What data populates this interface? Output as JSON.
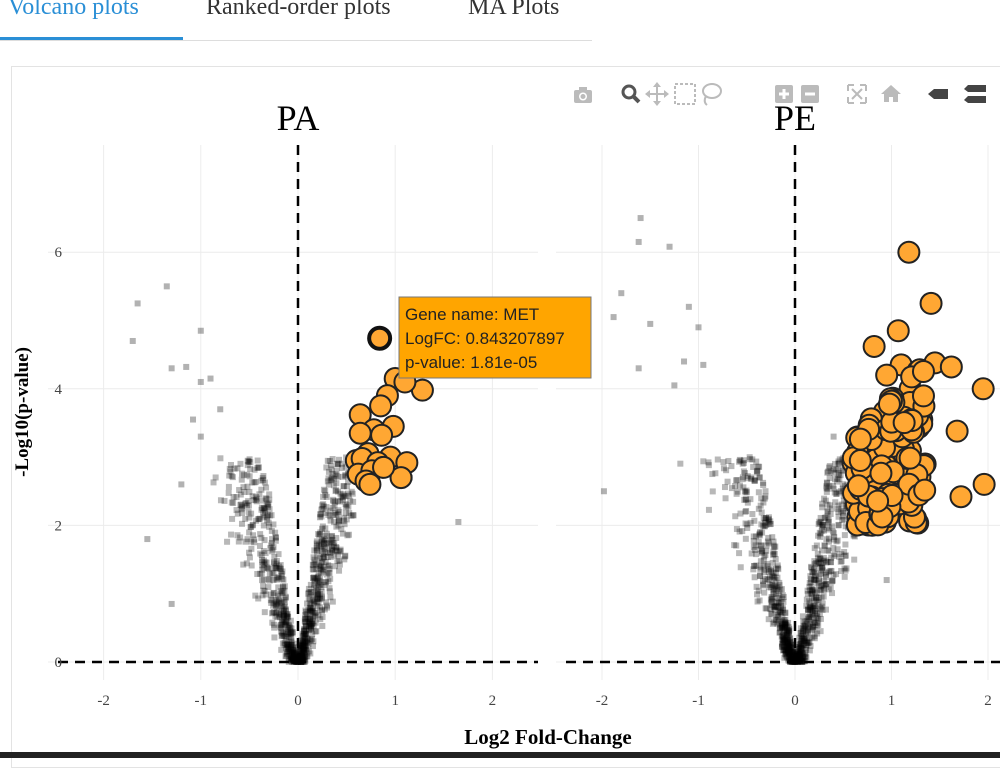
{
  "tabs": [
    {
      "label": "Volcano plots",
      "active": true
    },
    {
      "label": "Ranked-order plots",
      "active": false
    },
    {
      "label": "MA Plots",
      "active": false
    }
  ],
  "modebar": {
    "icons": [
      "camera-icon",
      "zoom-icon",
      "pan-icon",
      "box-select-icon",
      "lasso-icon",
      "zoom-in-icon",
      "zoom-out-icon",
      "autoscale-icon",
      "home-icon",
      "hover-closest-icon",
      "hover-compare-icon"
    ]
  },
  "colors": {
    "sig": "#ffa733",
    "sig_edge": "#222222",
    "ns": "#000000",
    "tooltip_bg": "#ffa500",
    "accent": "#2a8fd6"
  },
  "tooltip": {
    "line1": "Gene name: MET",
    "line2": "LogFC: 0.843207897",
    "line3": "p-value: 1.81e-05"
  },
  "chart_data": {
    "type": "scatter",
    "xlabel": "Log2 Fold-Change",
    "ylabel": "-Log10(p-value)",
    "xlim": [
      -2.4,
      2.4
    ],
    "ylim": [
      -0.2,
      7.6
    ],
    "xticks": [
      -2,
      -1,
      0,
      1,
      2
    ],
    "yticks": [
      0,
      2,
      4,
      6
    ],
    "reference_lines": {
      "x": 0,
      "y": 0
    },
    "panels": [
      {
        "title": "PA",
        "highlight": {
          "gene": "MET",
          "x": 0.84,
          "y": 4.74
        },
        "significant": [
          [
            0.84,
            4.74
          ],
          [
            1.28,
            3.98
          ],
          [
            1.0,
            4.15
          ],
          [
            1.1,
            4.1
          ],
          [
            0.92,
            3.9
          ],
          [
            0.85,
            3.75
          ],
          [
            0.64,
            3.62
          ],
          [
            0.98,
            3.45
          ],
          [
            0.78,
            3.4
          ],
          [
            0.64,
            3.35
          ],
          [
            0.86,
            3.32
          ],
          [
            0.72,
            3.05
          ],
          [
            0.95,
            3.0
          ],
          [
            0.6,
            2.95
          ],
          [
            0.66,
            2.98
          ],
          [
            1.12,
            2.92
          ],
          [
            0.82,
            2.92
          ],
          [
            0.62,
            2.75
          ],
          [
            0.76,
            2.8
          ],
          [
            0.7,
            2.65
          ],
          [
            1.06,
            2.7
          ],
          [
            0.88,
            2.85
          ],
          [
            0.74,
            2.6
          ]
        ],
        "ns_outliers": [
          [
            -1.65,
            5.25
          ],
          [
            -1.35,
            5.5
          ],
          [
            -1.7,
            4.7
          ],
          [
            -1.0,
            4.85
          ],
          [
            -1.3,
            4.3
          ],
          [
            -1.15,
            4.32
          ],
          [
            -1.0,
            4.1
          ],
          [
            -0.9,
            4.15
          ],
          [
            -1.08,
            3.55
          ],
          [
            -0.8,
            3.7
          ],
          [
            -1.0,
            3.3
          ],
          [
            -1.55,
            1.8
          ],
          [
            -1.3,
            0.85
          ],
          [
            1.65,
            2.05
          ],
          [
            1.15,
            2.7
          ],
          [
            -1.2,
            2.6
          ]
        ]
      },
      {
        "title": "PE",
        "highlight": null,
        "significant": [
          [
            1.18,
            6.0
          ],
          [
            1.41,
            5.25
          ],
          [
            1.07,
            4.85
          ],
          [
            0.82,
            4.62
          ],
          [
            1.45,
            4.38
          ],
          [
            1.62,
            4.32
          ],
          [
            1.95,
            4.0
          ],
          [
            1.68,
            3.38
          ],
          [
            1.72,
            2.42
          ],
          [
            1.96,
            2.6
          ],
          [
            1.1,
            4.35
          ],
          [
            0.95,
            4.2
          ],
          [
            1.0,
            3.2
          ],
          [
            0.85,
            2.2
          ],
          [
            1.25,
            2.1
          ]
        ],
        "sig_cluster": {
          "n": 150,
          "x_range": [
            0.6,
            1.35
          ],
          "y_range": [
            2.0,
            4.4
          ]
        },
        "ns_outliers": [
          [
            -1.6,
            6.5
          ],
          [
            -1.62,
            6.15
          ],
          [
            -1.3,
            6.08
          ],
          [
            -1.1,
            5.2
          ],
          [
            -1.8,
            5.4
          ],
          [
            -1.88,
            5.05
          ],
          [
            -1.5,
            4.95
          ],
          [
            -1.0,
            4.9
          ],
          [
            -1.62,
            4.3
          ],
          [
            -1.98,
            2.5
          ],
          [
            -1.15,
            4.4
          ],
          [
            -0.95,
            4.35
          ],
          [
            -1.25,
            4.05
          ],
          [
            0.4,
            3.3
          ],
          [
            0.35,
            2.05
          ],
          [
            0.95,
            1.2
          ]
        ]
      }
    ]
  }
}
